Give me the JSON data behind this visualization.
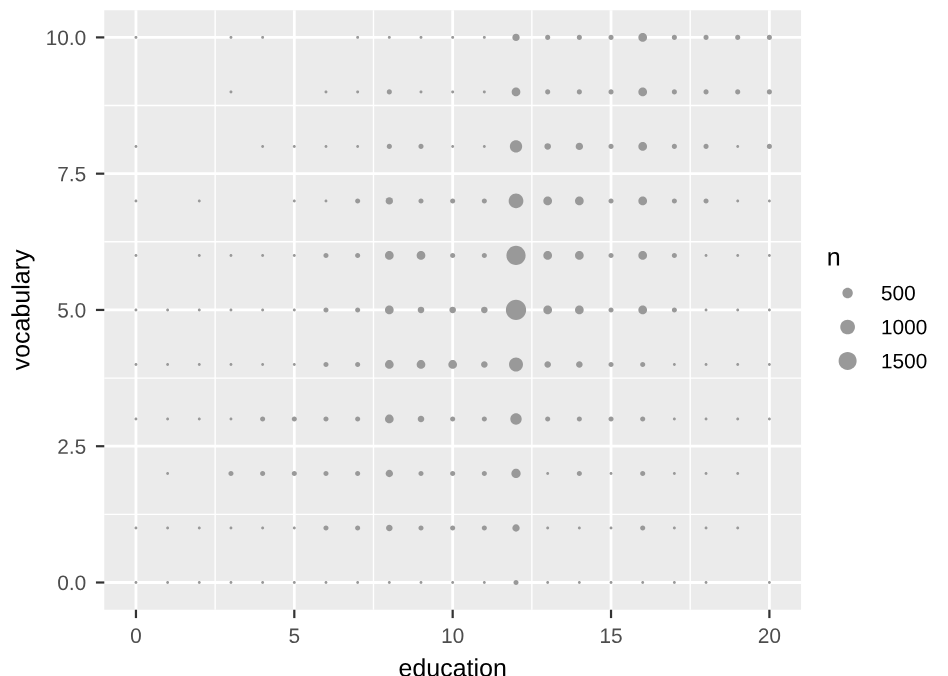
{
  "chart_data": {
    "type": "bubble",
    "xlabel": "education",
    "ylabel": "vocabulary",
    "legend_title": "n",
    "color": "#999999",
    "grid": true,
    "xlim": [
      -1,
      21
    ],
    "xticks": [
      0,
      5,
      10,
      15,
      20
    ],
    "ylim": [
      -0.5,
      10.5
    ],
    "yticks": [
      {
        "value": 0,
        "label": "0.0"
      },
      {
        "value": 2.5,
        "label": "2.5"
      },
      {
        "value": 5,
        "label": "5.0"
      },
      {
        "value": 7.5,
        "label": "7.5"
      },
      {
        "value": 10,
        "label": "10.0"
      }
    ],
    "size_legend": [
      500,
      1000,
      1500
    ],
    "series": [
      {
        "x": [
          0,
          3,
          4,
          7,
          8,
          9,
          10,
          11,
          12,
          13,
          14,
          15,
          16,
          17,
          18,
          19,
          20
        ],
        "values": [
          10,
          10,
          10,
          10,
          10,
          10,
          10,
          10,
          10,
          10,
          10,
          10,
          10,
          10,
          10,
          10,
          10
        ],
        "sizes": [
          40,
          40,
          40,
          40,
          40,
          40,
          40,
          40,
          250,
          120,
          120,
          120,
          350,
          120,
          120,
          120,
          120
        ]
      },
      {
        "x": [
          3,
          6,
          7,
          8,
          9,
          10,
          11,
          12,
          13,
          14,
          15,
          16,
          17,
          18,
          19,
          20
        ],
        "values": [
          9,
          9,
          9,
          9,
          9,
          9,
          9,
          9,
          9,
          9,
          9,
          9,
          9,
          9,
          9,
          9
        ],
        "sizes": [
          40,
          40,
          40,
          120,
          40,
          40,
          40,
          350,
          120,
          120,
          120,
          350,
          120,
          120,
          120,
          120
        ]
      },
      {
        "x": [
          0,
          4,
          5,
          6,
          7,
          8,
          9,
          10,
          11,
          12,
          13,
          14,
          15,
          16,
          17,
          18,
          19,
          20
        ],
        "values": [
          8,
          8,
          8,
          8,
          8,
          8,
          8,
          8,
          8,
          8,
          8,
          8,
          8,
          8,
          8,
          8,
          8,
          8
        ],
        "sizes": [
          40,
          40,
          40,
          40,
          40,
          120,
          120,
          40,
          40,
          700,
          200,
          250,
          120,
          350,
          120,
          120,
          40,
          120
        ]
      },
      {
        "x": [
          0,
          2,
          5,
          6,
          7,
          8,
          9,
          10,
          11,
          12,
          13,
          14,
          15,
          16,
          17,
          18,
          19,
          20
        ],
        "values": [
          7,
          7,
          7,
          7,
          7,
          7,
          7,
          7,
          7,
          7,
          7,
          7,
          7,
          7,
          7,
          7,
          7,
          7
        ],
        "sizes": [
          40,
          40,
          40,
          40,
          120,
          250,
          120,
          120,
          120,
          1000,
          350,
          350,
          120,
          350,
          120,
          120,
          40,
          40
        ]
      },
      {
        "x": [
          0,
          2,
          3,
          4,
          5,
          6,
          7,
          8,
          9,
          10,
          11,
          12,
          13,
          14,
          15,
          16,
          17,
          18,
          19,
          20
        ],
        "values": [
          6,
          6,
          6,
          6,
          6,
          6,
          6,
          6,
          6,
          6,
          6,
          6,
          6,
          6,
          6,
          6,
          6,
          6,
          6,
          6
        ],
        "sizes": [
          40,
          40,
          40,
          40,
          40,
          120,
          120,
          350,
          350,
          120,
          120,
          1700,
          350,
          350,
          120,
          350,
          120,
          40,
          40,
          40
        ]
      },
      {
        "x": [
          0,
          1,
          2,
          3,
          4,
          5,
          6,
          7,
          8,
          9,
          10,
          11,
          12,
          13,
          14,
          15,
          16,
          17,
          18,
          19,
          20
        ],
        "values": [
          5,
          5,
          5,
          5,
          5,
          5,
          5,
          5,
          5,
          5,
          5,
          5,
          5,
          5,
          5,
          5,
          5,
          5,
          5,
          5,
          5
        ],
        "sizes": [
          40,
          40,
          40,
          40,
          40,
          40,
          120,
          120,
          350,
          200,
          200,
          200,
          1900,
          350,
          350,
          120,
          350,
          120,
          40,
          40,
          40
        ]
      },
      {
        "x": [
          0,
          1,
          2,
          3,
          4,
          5,
          6,
          7,
          8,
          9,
          10,
          11,
          12,
          13,
          14,
          15,
          16,
          17,
          18,
          19,
          20
        ],
        "values": [
          4,
          4,
          4,
          4,
          4,
          4,
          4,
          4,
          4,
          4,
          4,
          4,
          4,
          4,
          4,
          4,
          4,
          4,
          4,
          4,
          4
        ],
        "sizes": [
          40,
          40,
          40,
          40,
          40,
          40,
          120,
          120,
          350,
          350,
          350,
          200,
          900,
          200,
          200,
          120,
          120,
          40,
          40,
          40,
          40
        ]
      },
      {
        "x": [
          0,
          1,
          2,
          3,
          4,
          5,
          6,
          7,
          8,
          9,
          10,
          11,
          12,
          13,
          14,
          15,
          16,
          17,
          18,
          19,
          20
        ],
        "values": [
          3,
          3,
          3,
          3,
          3,
          3,
          3,
          3,
          3,
          3,
          3,
          3,
          3,
          3,
          3,
          3,
          3,
          3,
          3,
          3,
          3
        ],
        "sizes": [
          40,
          40,
          40,
          40,
          120,
          120,
          120,
          120,
          350,
          200,
          120,
          120,
          600,
          120,
          120,
          120,
          120,
          40,
          40,
          40,
          40
        ]
      },
      {
        "x": [
          1,
          3,
          4,
          5,
          6,
          7,
          8,
          9,
          10,
          11,
          12,
          13,
          14,
          15,
          16,
          17,
          18,
          19
        ],
        "values": [
          2,
          2,
          2,
          2,
          2,
          2,
          2,
          2,
          2,
          2,
          2,
          2,
          2,
          2,
          2,
          2,
          2,
          2
        ],
        "sizes": [
          40,
          120,
          120,
          120,
          120,
          120,
          250,
          120,
          120,
          120,
          400,
          40,
          120,
          40,
          120,
          40,
          40,
          40
        ]
      },
      {
        "x": [
          0,
          1,
          2,
          3,
          4,
          5,
          6,
          7,
          8,
          9,
          10,
          11,
          12,
          13,
          14,
          15,
          16,
          17,
          18,
          19
        ],
        "values": [
          1,
          1,
          1,
          1,
          1,
          1,
          1,
          1,
          1,
          1,
          1,
          1,
          1,
          1,
          1,
          1,
          1,
          1,
          1,
          1
        ],
        "sizes": [
          40,
          40,
          40,
          40,
          40,
          40,
          120,
          120,
          200,
          120,
          120,
          120,
          250,
          40,
          40,
          40,
          120,
          40,
          40,
          40
        ]
      },
      {
        "x": [
          0,
          1,
          2,
          3,
          4,
          5,
          6,
          7,
          8,
          9,
          10,
          11,
          12,
          13,
          14,
          15,
          16,
          17,
          18,
          20
        ],
        "values": [
          0,
          0,
          0,
          0,
          0,
          0,
          0,
          0,
          0,
          0,
          0,
          0,
          0,
          0,
          0,
          0,
          0,
          0,
          0,
          0
        ],
        "sizes": [
          40,
          40,
          40,
          40,
          40,
          40,
          40,
          40,
          40,
          40,
          40,
          40,
          120,
          40,
          40,
          40,
          40,
          40,
          40,
          40
        ]
      }
    ]
  }
}
